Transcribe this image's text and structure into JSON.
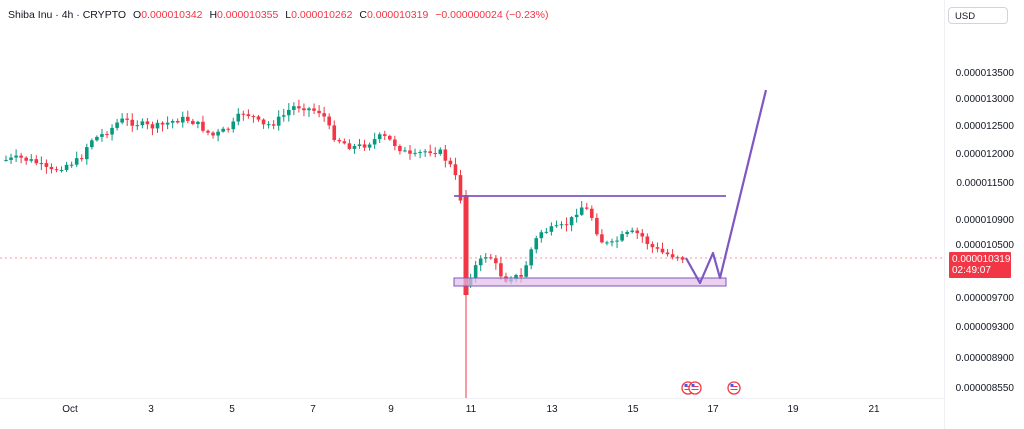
{
  "header": {
    "symbol": "Shiba Inu · 4h · CRYPTO",
    "open_label": "O",
    "open": "0.000010342",
    "high_label": "H",
    "high": "0.000010355",
    "low_label": "L",
    "low": "0.000010262",
    "close_label": "C",
    "close": "0.000010319",
    "change": "−0.000000024 (−0.23%)"
  },
  "currency": "USD",
  "last_price": "0.000010319",
  "countdown": "02:49:07",
  "colors": {
    "up": "#089981",
    "down": "#f23645",
    "drawing": "#7e57c2",
    "zone_fill": "#e1bee7"
  },
  "price_axis": [
    "0.000013500",
    "0.000013000",
    "0.000012500",
    "0.000012000",
    "0.000011500",
    "0.000010900",
    "0.000010500",
    "0.000009700",
    "0.000009300",
    "0.000008900",
    "0.000008550"
  ],
  "date_axis": [
    "Oct",
    "3",
    "5",
    "7",
    "9",
    "11",
    "13",
    "15",
    "17",
    "19",
    "21"
  ],
  "icons": [
    "us-flag-event-icon",
    "us-flag-event-icon",
    "us-flag-event-icon"
  ]
}
